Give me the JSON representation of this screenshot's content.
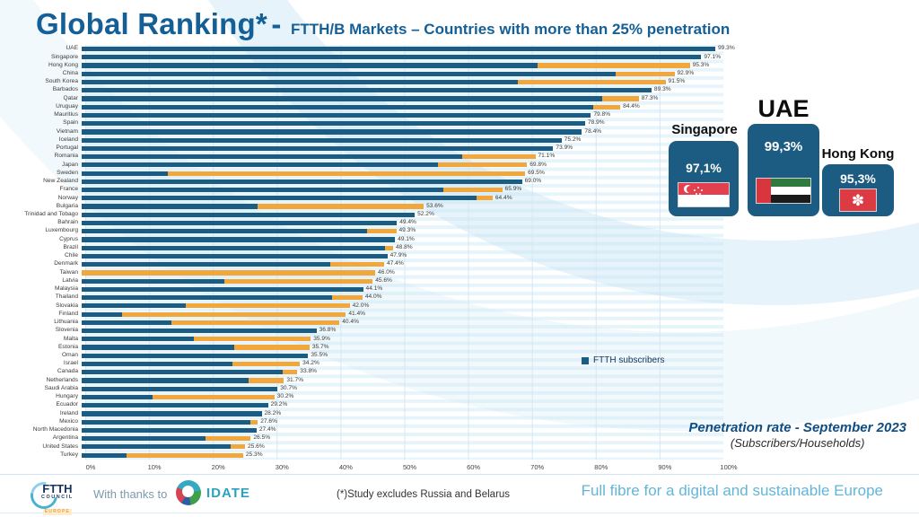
{
  "title": {
    "main": "Global Ranking*",
    "sep": "-",
    "subtitle": "FTTH/B Markets – Countries with more than 25% penetration"
  },
  "legend": {
    "label": "FTTH subscribers"
  },
  "note": {
    "line1": "Penetration rate - September 2023",
    "line2": "(Subscribers/Households)"
  },
  "podium": {
    "second": {
      "name": "Singapore",
      "value": "97,1%"
    },
    "first": {
      "name": "UAE",
      "value": "99,3%"
    },
    "third": {
      "name": "Hong Kong",
      "value": "95,3%"
    }
  },
  "footer": {
    "logo": {
      "l1": "FTTH",
      "l2": "COUNCIL",
      "l3": "EUROPE"
    },
    "thanks": "With thanks to",
    "idate": "IDATE",
    "study_note": "(*)Study excludes Russia and Belarus",
    "tagline": "Full fibre for a digital and sustainable Europe"
  },
  "colors": {
    "bar_blue": "#1d5c82",
    "bar_orange": "#f2a73d",
    "title_blue": "#155f97",
    "note_blue": "#0f4c81",
    "tagline_teal": "#62b6da"
  },
  "chart_data": {
    "type": "bar",
    "orientation": "horizontal",
    "stacked": true,
    "title": "Global Ranking* - FTTH/B Markets – Countries with more than 25% penetration",
    "legend_entries": [
      "FTTH subscribers"
    ],
    "xlim": [
      0,
      100
    ],
    "x_ticks": [
      "0%",
      "10%",
      "20%",
      "30%",
      "40%",
      "50%",
      "60%",
      "70%",
      "80%",
      "90%",
      "100%"
    ],
    "grid": true,
    "legend_position": "center-right",
    "series_meaning": "blue = FTTH subscribers share; orange = remainder up to total penetration rate",
    "rows": [
      {
        "country": "UAE",
        "blue": 99.3,
        "total": 99.3,
        "label": "99.3%"
      },
      {
        "country": "Singapore",
        "blue": 97.1,
        "total": 97.1,
        "label": "97.1%"
      },
      {
        "country": "Hong Kong",
        "blue": 71.5,
        "total": 95.3,
        "label": "95.3%"
      },
      {
        "country": "China",
        "blue": 83.7,
        "total": 92.9,
        "label": "92.9%"
      },
      {
        "country": "South Korea",
        "blue": 68.3,
        "total": 91.5,
        "label": "91.5%"
      },
      {
        "country": "Barbados",
        "blue": 89.3,
        "total": 89.3,
        "label": "89.3%"
      },
      {
        "country": "Qatar",
        "blue": 81.6,
        "total": 87.3,
        "label": "87.3%"
      },
      {
        "country": "Uruguay",
        "blue": 80.2,
        "total": 84.4,
        "label": "84.4%"
      },
      {
        "country": "Mauritius",
        "blue": 79.8,
        "total": 79.8,
        "label": "79.8%"
      },
      {
        "country": "Spain",
        "blue": 78.9,
        "total": 78.9,
        "label": "78.9%"
      },
      {
        "country": "Vietnam",
        "blue": 78.4,
        "total": 78.4,
        "label": "78.4%"
      },
      {
        "country": "Iceland",
        "blue": 75.2,
        "total": 75.2,
        "label": "75.2%"
      },
      {
        "country": "Portugal",
        "blue": 73.9,
        "total": 73.9,
        "label": "73.9%"
      },
      {
        "country": "Romania",
        "blue": 59.6,
        "total": 71.1,
        "label": "71.1%"
      },
      {
        "country": "Japan",
        "blue": 55.8,
        "total": 69.8,
        "label": "69.8%"
      },
      {
        "country": "Sweden",
        "blue": 13.5,
        "total": 69.5,
        "label": "69.5%"
      },
      {
        "country": "New Zealand",
        "blue": 69.0,
        "total": 69.0,
        "label": "69.0%"
      },
      {
        "country": "France",
        "blue": 56.7,
        "total": 65.9,
        "label": "65.9%"
      },
      {
        "country": "Norway",
        "blue": 61.9,
        "total": 64.4,
        "label": "64.4%"
      },
      {
        "country": "Bulgaria",
        "blue": 27.6,
        "total": 53.6,
        "label": "53.6%"
      },
      {
        "country": "Trinidad and Tobago",
        "blue": 52.2,
        "total": 52.2,
        "label": "52.2%"
      },
      {
        "country": "Bahrain",
        "blue": 49.4,
        "total": 49.4,
        "label": "49.4%"
      },
      {
        "country": "Luxembourg",
        "blue": 44.7,
        "total": 49.3,
        "label": "49.3%"
      },
      {
        "country": "Cyprus",
        "blue": 49.1,
        "total": 49.1,
        "label": "49.1%"
      },
      {
        "country": "Brazil",
        "blue": 47.5,
        "total": 48.8,
        "label": "48.8%"
      },
      {
        "country": "Chile",
        "blue": 47.9,
        "total": 47.9,
        "label": "47.9%"
      },
      {
        "country": "Denmark",
        "blue": 39.0,
        "total": 47.4,
        "label": "47.4%"
      },
      {
        "country": "Taiwan",
        "blue": 0,
        "total": 46.0,
        "label": "46.0%"
      },
      {
        "country": "Latvia",
        "blue": 22.4,
        "total": 45.6,
        "label": "45.6%"
      },
      {
        "country": "Malaysia",
        "blue": 44.1,
        "total": 44.1,
        "label": "44.1%"
      },
      {
        "country": "Thailand",
        "blue": 39.2,
        "total": 44.0,
        "label": "44.0%"
      },
      {
        "country": "Slovakia",
        "blue": 16.3,
        "total": 42.0,
        "label": "42.0%"
      },
      {
        "country": "Finland",
        "blue": 6.3,
        "total": 41.4,
        "label": "41.4%"
      },
      {
        "country": "Lithuania",
        "blue": 14.1,
        "total": 40.4,
        "label": "40.4%"
      },
      {
        "country": "Slovenia",
        "blue": 36.8,
        "total": 36.8,
        "label": "36.8%"
      },
      {
        "country": "Malta",
        "blue": 17.6,
        "total": 35.9,
        "label": "35.9%"
      },
      {
        "country": "Estonia",
        "blue": 23.9,
        "total": 35.7,
        "label": "35.7%"
      },
      {
        "country": "Oman",
        "blue": 35.5,
        "total": 35.5,
        "label": "35.5%"
      },
      {
        "country": "Israel",
        "blue": 23.6,
        "total": 34.2,
        "label": "34.2%"
      },
      {
        "country": "Canada",
        "blue": 31.5,
        "total": 33.8,
        "label": "33.8%"
      },
      {
        "country": "Netherlands",
        "blue": 26.2,
        "total": 31.7,
        "label": "31.7%"
      },
      {
        "country": "Saudi Arabia",
        "blue": 30.7,
        "total": 30.7,
        "label": "30.7%"
      },
      {
        "country": "Hungary",
        "blue": 11.1,
        "total": 30.2,
        "label": "30.2%"
      },
      {
        "country": "Ecuador",
        "blue": 29.2,
        "total": 29.2,
        "label": "29.2%"
      },
      {
        "country": "Ireland",
        "blue": 28.2,
        "total": 28.2,
        "label": "28.2%"
      },
      {
        "country": "Mexico",
        "blue": 26.4,
        "total": 27.6,
        "label": "27.6%"
      },
      {
        "country": "North Macedonia",
        "blue": 27.4,
        "total": 27.4,
        "label": "27.4%"
      },
      {
        "country": "Argentina",
        "blue": 19.4,
        "total": 26.5,
        "label": "26.5%"
      },
      {
        "country": "United States",
        "blue": 23.4,
        "total": 25.6,
        "label": "25.6%"
      },
      {
        "country": "Turkey",
        "blue": 7.0,
        "total": 25.3,
        "label": "25.3%"
      }
    ]
  }
}
